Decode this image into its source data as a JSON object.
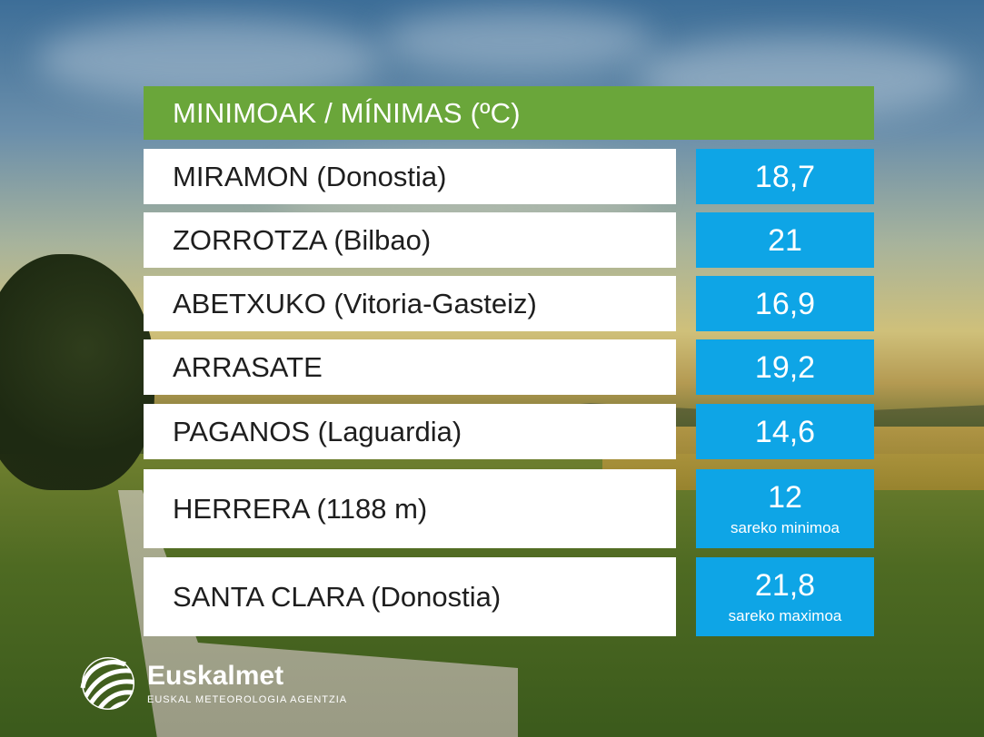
{
  "header": {
    "title": "MINIMOAK / MÍNIMAS (ºC)"
  },
  "stations": [
    {
      "name": "MIRAMON (Donostia)",
      "value": "18,7",
      "note": ""
    },
    {
      "name": "ZORROTZA (Bilbao)",
      "value": "21",
      "note": ""
    },
    {
      "name": "ABETXUKO (Vitoria-Gasteiz)",
      "value": "16,9",
      "note": ""
    },
    {
      "name": "ARRASATE",
      "value": "19,2",
      "note": ""
    },
    {
      "name": "PAGANOS (Laguardia)",
      "value": "14,6",
      "note": ""
    },
    {
      "name": "HERRERA (1188 m)",
      "value": "12",
      "note": "sareko minimoa"
    },
    {
      "name": "SANTA CLARA (Donostia)",
      "value": "21,8",
      "note": "sareko maximoa"
    }
  ],
  "logo": {
    "name": "Euskalmet",
    "subtitle": "EUSKAL METEOROLOGIA AGENTZIA",
    "icon": "euskalmet-logo-icon"
  },
  "colors": {
    "header_bg": "#6aa63a",
    "value_bg": "#0ea5e6",
    "label_bg": "#ffffff"
  }
}
